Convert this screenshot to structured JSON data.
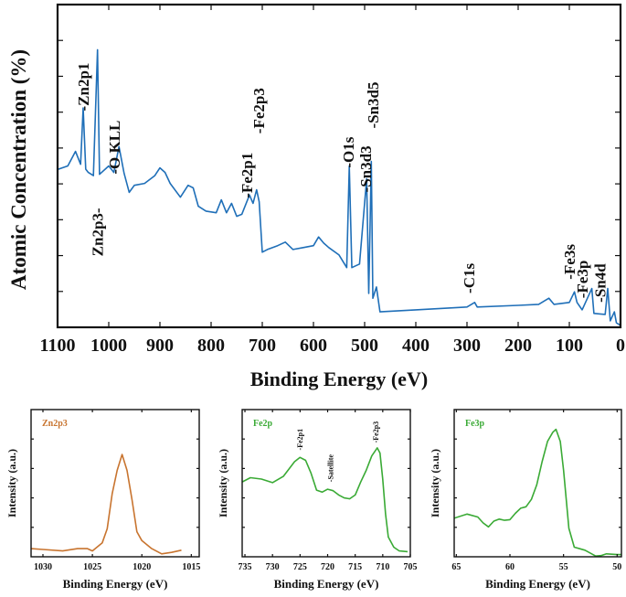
{
  "chart_data": [
    {
      "type": "line",
      "xlabel": "Binding Energy (eV)",
      "ylabel": "Atomic Concentration (%)",
      "xlim": [
        1100,
        0
      ],
      "ylim": [
        0,
        100
      ],
      "x_reversed": true,
      "xticks": [
        1100,
        1000,
        900,
        800,
        700,
        600,
        500,
        400,
        300,
        200,
        100,
        0
      ],
      "grid": false,
      "color": "#1f6fb8",
      "series": [
        {
          "x": [
            1100,
            1080,
            1065,
            1055,
            1050,
            1045,
            1040,
            1030,
            1022,
            1018,
            1000,
            990,
            980,
            970,
            960,
            950,
            930,
            910,
            900,
            890,
            880,
            860,
            845,
            835,
            825,
            810,
            790,
            780,
            770,
            760,
            750,
            740,
            725,
            718,
            711,
            706,
            700,
            690,
            670,
            655,
            640,
            620,
            600,
            590,
            580,
            570,
            550,
            535,
            530,
            525,
            510,
            496,
            492,
            487,
            484,
            477,
            470,
            400,
            300,
            285,
            280,
            200,
            160,
            140,
            130,
            100,
            90,
            85,
            75,
            56,
            52,
            30,
            25,
            20,
            12,
            8,
            0
          ],
          "y": [
            48.9,
            50,
            54.5,
            50.5,
            68,
            49,
            48,
            47,
            86,
            47.4,
            50,
            48,
            56,
            47.7,
            41.8,
            44,
            44.6,
            47,
            49.4,
            48,
            44.6,
            40.3,
            44,
            43.2,
            37.5,
            36,
            35.5,
            39.5,
            35.5,
            38.4,
            34.4,
            35,
            41,
            38.4,
            42.6,
            38.9,
            23.3,
            24.1,
            25.3,
            26.4,
            24.1,
            24.7,
            25.3,
            28,
            26.1,
            24.7,
            22.4,
            18.5,
            50,
            18.5,
            19.6,
            46,
            10.5,
            51.4,
            9,
            12.5,
            4.8,
            5.4,
            6.3,
            7.7,
            6.3,
            6.8,
            7.1,
            9,
            7.1,
            7.7,
            11,
            7.7,
            5.4,
            12,
            4.3,
            4,
            12,
            2.0,
            4.8,
            1.4,
            0.6
          ]
        }
      ],
      "annotations": [
        {
          "text": "-Zn2p1",
          "x": 1050,
          "y": 67
        },
        {
          "text": "Zn2p3-",
          "x": 1022,
          "y": 22
        },
        {
          "text": "-O KLL",
          "x": 989,
          "y": 47.4
        },
        {
          "text": "-Fe2p1",
          "x": 730,
          "y": 40
        },
        {
          "text": "-Fe2p3",
          "x": 707,
          "y": 60
        },
        {
          "text": "-O1s",
          "x": 532,
          "y": 49.4
        },
        {
          "text": "-Sn3d3",
          "x": 498,
          "y": 41.8
        },
        {
          "text": "-Sn3d5",
          "x": 484,
          "y": 61.6
        },
        {
          "text": "-C1s",
          "x": 296,
          "y": 10.5
        },
        {
          "text": "-Fe3s",
          "x": 100,
          "y": 14.8
        },
        {
          "text": "-Fe3p",
          "x": 75,
          "y": 9
        },
        {
          "text": "-Sn4d",
          "x": 40,
          "y": 7.7
        }
      ]
    },
    {
      "type": "line",
      "title": "Zn2p3",
      "xlabel": "Binding Energy (eV)",
      "ylabel": "Intensity (a.u.)",
      "xlim": [
        1031.2,
        1014.2
      ],
      "ylim": [
        0,
        100
      ],
      "x_reversed": true,
      "xticks": [
        1030,
        1025,
        1020,
        1015
      ],
      "color": "#c8742f",
      "series": [
        {
          "x": [
            1031.2,
            1030,
            1028,
            1026.5,
            1025.5,
            1025,
            1024,
            1023.5,
            1023,
            1022.5,
            1022,
            1021.5,
            1021,
            1020.5,
            1020,
            1019,
            1018,
            1017,
            1016
          ],
          "y": [
            5.5,
            5,
            4,
            5.5,
            5.5,
            4,
            9.5,
            19,
            43,
            58.7,
            69.5,
            58.7,
            39,
            17,
            11,
            5.5,
            2,
            3,
            4.5
          ]
        }
      ],
      "annotations": []
    },
    {
      "type": "line",
      "title": "Fe2p",
      "xlabel": "Binding Energy (eV)",
      "ylabel": "Intensity (a.u.)",
      "xlim": [
        735.5,
        705
      ],
      "ylim": [
        0,
        100
      ],
      "x_reversed": true,
      "xticks": [
        735,
        730,
        725,
        720,
        715,
        710,
        705
      ],
      "color": "#3aaa35",
      "series": [
        {
          "x": [
            735.5,
            734,
            732,
            730,
            728,
            726,
            725,
            724,
            723,
            722,
            721,
            720,
            719,
            718,
            717,
            716,
            715,
            714,
            713,
            712,
            711,
            710.5,
            710,
            709.5,
            709,
            708,
            707,
            705.5
          ],
          "y": [
            50.8,
            53.7,
            52.8,
            50.4,
            54.7,
            64.6,
            67.5,
            65.5,
            56.7,
            45.3,
            43.9,
            45.9,
            44.9,
            42,
            40,
            39.4,
            42,
            50.8,
            58.7,
            68.5,
            74,
            70.5,
            52.8,
            29,
            13.4,
            6.5,
            4,
            3.5
          ]
        }
      ],
      "annotations": [
        {
          "text": "-Fe2p1",
          "x": 725,
          "y": 72.4
        },
        {
          "text": "-Satellite",
          "x": 719.5,
          "y": 50.8
        },
        {
          "text": "-Fe2p3",
          "x": 711.3,
          "y": 77.4
        }
      ]
    },
    {
      "type": "line",
      "title": "Fe3p",
      "xlabel": "Binding Energy (eV)",
      "ylabel": "Intensity (a.u.)",
      "xlim": [
        65.2,
        49.6
      ],
      "ylim": [
        0,
        100
      ],
      "x_reversed": true,
      "xticks": [
        65,
        60,
        55,
        50
      ],
      "color": "#3aaa35",
      "series": [
        {
          "x": [
            65.2,
            64,
            63,
            62.5,
            62,
            61.5,
            61,
            60.5,
            60,
            59.5,
            59,
            58.5,
            58,
            57.5,
            57,
            56.5,
            56,
            55.7,
            55.3,
            55,
            54.5,
            54,
            53,
            52,
            51.5,
            51,
            50,
            49.6
          ],
          "y": [
            26.2,
            29,
            27,
            23,
            20.3,
            24.2,
            25.6,
            24.8,
            25.2,
            29.5,
            33,
            34,
            39,
            48.8,
            64.6,
            78.3,
            84.6,
            86.6,
            78.3,
            58.7,
            19.3,
            6.5,
            4.5,
            0.5,
            0.8,
            2,
            1.5,
            1.5
          ]
        }
      ],
      "annotations": []
    }
  ]
}
